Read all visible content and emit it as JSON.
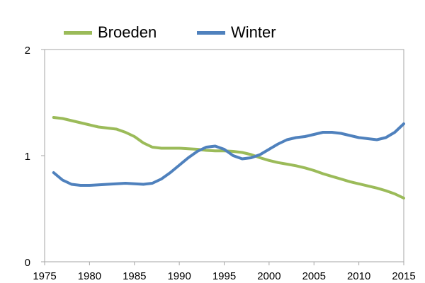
{
  "chart_data": {
    "type": "line",
    "title": "",
    "xlabel": "",
    "ylabel": "",
    "xlim": [
      1975,
      2015
    ],
    "ylim": [
      0,
      2
    ],
    "x_ticks": [
      "1975",
      "1980",
      "1985",
      "1990",
      "1995",
      "2000",
      "2005",
      "2010",
      "2015"
    ],
    "y_ticks": [
      "0",
      "1",
      "2"
    ],
    "grid": false,
    "legend_position": "top",
    "series": [
      {
        "name": "Broeden",
        "color": "#9bbb59",
        "x": [
          1976,
          1977,
          1978,
          1979,
          1980,
          1981,
          1982,
          1983,
          1984,
          1985,
          1986,
          1987,
          1988,
          1989,
          1990,
          1991,
          1992,
          1993,
          1994,
          1995,
          1996,
          1997,
          1998,
          1999,
          2000,
          2001,
          2002,
          2003,
          2004,
          2005,
          2006,
          2007,
          2008,
          2009,
          2010,
          2011,
          2012,
          2013,
          2014,
          2015
        ],
        "values": [
          1.36,
          1.35,
          1.33,
          1.31,
          1.29,
          1.27,
          1.26,
          1.25,
          1.22,
          1.18,
          1.12,
          1.08,
          1.07,
          1.07,
          1.07,
          1.065,
          1.06,
          1.05,
          1.045,
          1.045,
          1.04,
          1.03,
          1.01,
          0.98,
          0.955,
          0.935,
          0.92,
          0.905,
          0.885,
          0.86,
          0.83,
          0.805,
          0.78,
          0.755,
          0.735,
          0.715,
          0.695,
          0.67,
          0.64,
          0.6
        ]
      },
      {
        "name": "Winter",
        "color": "#4f81bd",
        "x": [
          1976,
          1977,
          1978,
          1979,
          1980,
          1981,
          1982,
          1983,
          1984,
          1985,
          1986,
          1987,
          1988,
          1989,
          1990,
          1991,
          1992,
          1993,
          1994,
          1995,
          1996,
          1997,
          1998,
          1999,
          2000,
          2001,
          2002,
          2003,
          2004,
          2005,
          2006,
          2007,
          2008,
          2009,
          2010,
          2011,
          2012,
          2013,
          2014,
          2015
        ],
        "values": [
          0.84,
          0.77,
          0.73,
          0.72,
          0.72,
          0.725,
          0.73,
          0.735,
          0.74,
          0.735,
          0.73,
          0.74,
          0.78,
          0.84,
          0.91,
          0.98,
          1.04,
          1.08,
          1.09,
          1.06,
          1.0,
          0.97,
          0.98,
          1.01,
          1.06,
          1.11,
          1.15,
          1.17,
          1.18,
          1.2,
          1.22,
          1.22,
          1.21,
          1.19,
          1.17,
          1.16,
          1.15,
          1.17,
          1.22,
          1.3
        ]
      }
    ]
  }
}
